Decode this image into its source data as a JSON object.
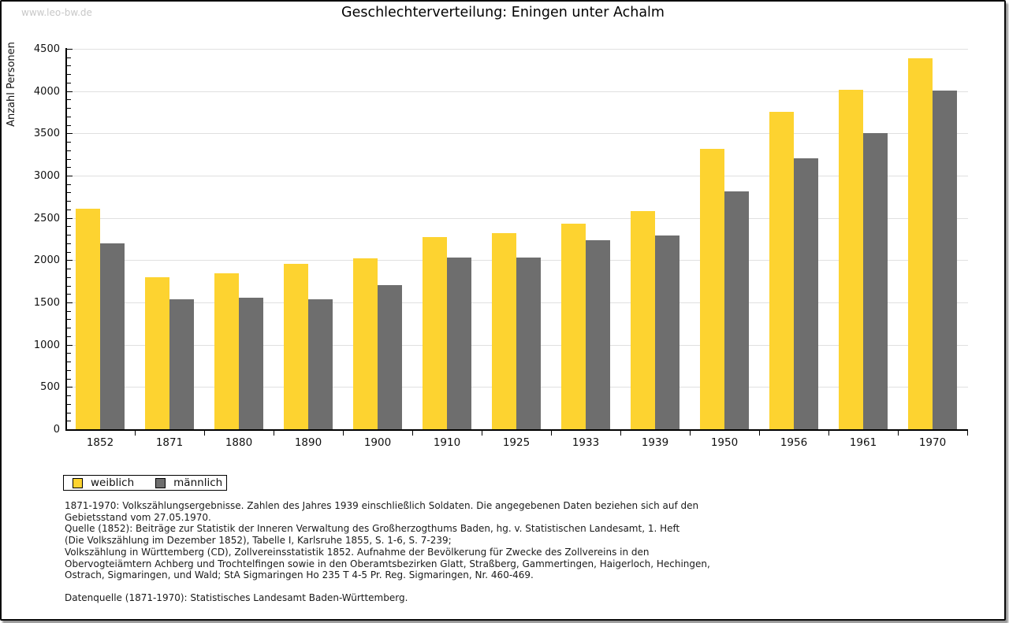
{
  "watermark": "www.leo-bw.de",
  "title": "Geschlechterverteilung: Eningen unter Achalm",
  "chart_data": {
    "type": "bar",
    "title": "Geschlechterverteilung: Eningen unter Achalm",
    "xlabel": "",
    "ylabel": "Anzahl Personen",
    "ylim": [
      0,
      4500
    ],
    "ytick_step": 500,
    "yminor_step": 100,
    "grid": true,
    "legend_position": "bottom-left",
    "categories": [
      "1852",
      "1871",
      "1880",
      "1890",
      "1900",
      "1910",
      "1925",
      "1933",
      "1939",
      "1950",
      "1956",
      "1961",
      "1970"
    ],
    "series": [
      {
        "name": "weiblich",
        "color": "#FDD330",
        "values": [
          2610,
          1800,
          1845,
          1955,
          2025,
          2270,
          2320,
          2430,
          2580,
          3320,
          3755,
          4020,
          4390
        ]
      },
      {
        "name": "männlich",
        "color": "#6E6E6E",
        "values": [
          2195,
          1540,
          1560,
          1540,
          1705,
          2035,
          2030,
          2240,
          2290,
          2815,
          3205,
          3505,
          4010
        ]
      }
    ]
  },
  "footnotes": {
    "lines": [
      "1871-1970: Volkszählungsergebnisse. Zahlen des Jahres 1939 einschließlich Soldaten. Die angegebenen Daten beziehen sich auf den",
      "Gebietsstand vom 27.05.1970.",
      "Quelle (1852): Beiträge zur Statistik der Inneren Verwaltung des Großherzogthums Baden, hg. v. Statistischen Landesamt, 1. Heft",
      "(Die Volkszählung im Dezember 1852), Tabelle I, Karlsruhe 1855, S. 1-6, S. 7-239;",
      "Volkszählung in Württemberg (CD), Zollvereinsstatistik 1852. Aufnahme der Bevölkerung für Zwecke des Zollvereins in den",
      "Obervogteiämtern Achberg und Trochtelfingen sowie in den Oberamtsbezirken Glatt, Straßberg, Gammertingen, Haigerloch, Hechingen,",
      "Ostrach, Sigmaringen, und Wald; StA Sigmaringen Ho 235 T 4-5 Pr. Reg. Sigmaringen, Nr. 460-469."
    ],
    "datasource": "Datenquelle (1871-1970): Statistisches Landesamt Baden-Württemberg."
  }
}
